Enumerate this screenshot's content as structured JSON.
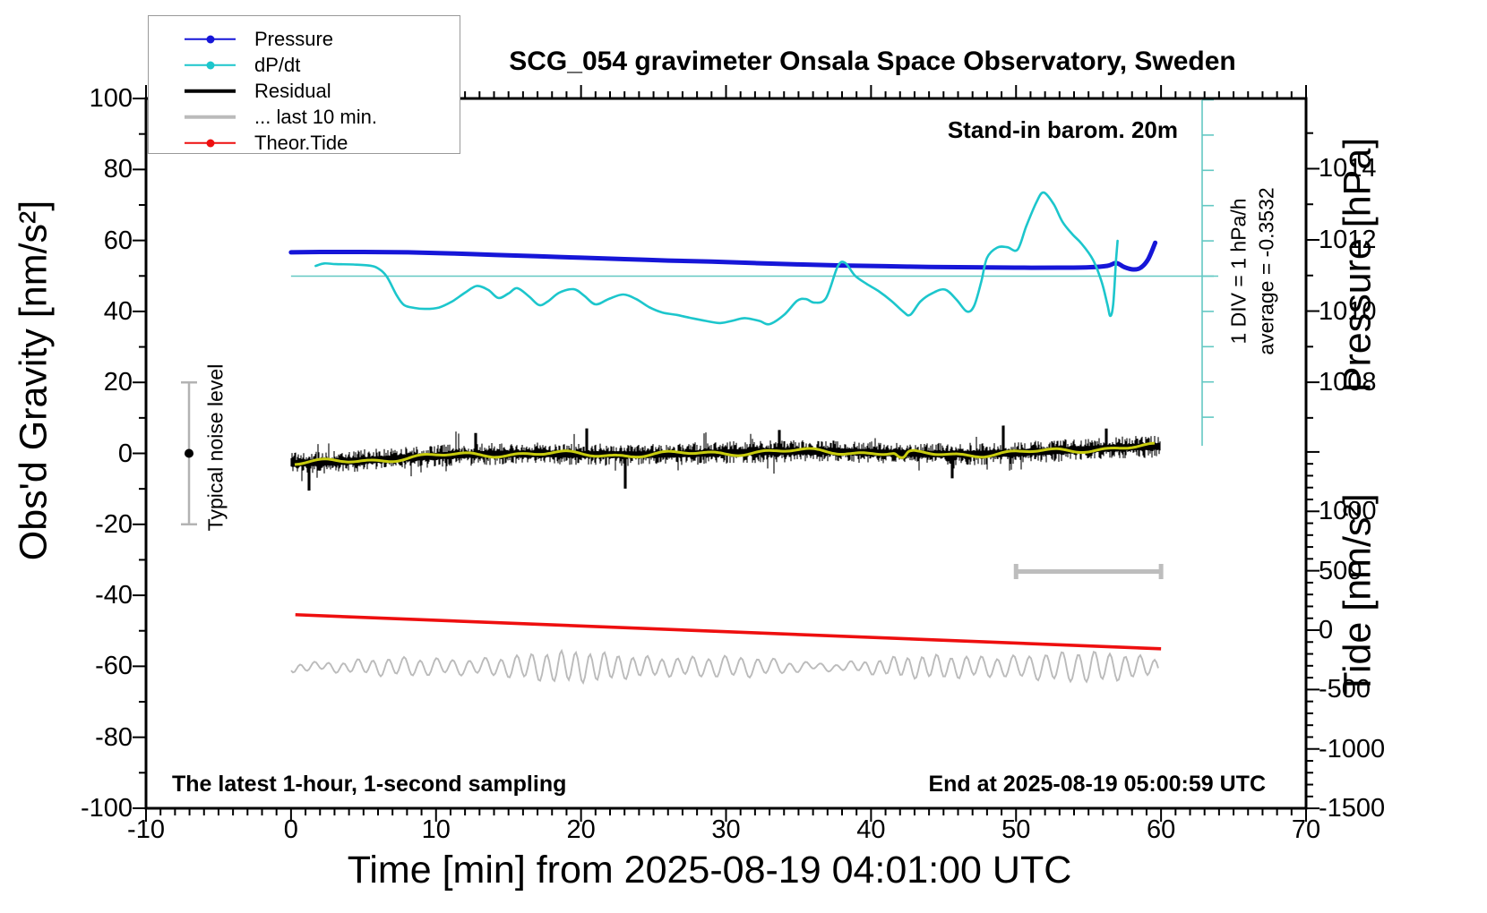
{
  "title": "SCG_054 gravimeter Onsala Space Observatory, Sweden",
  "annotations": {
    "stand_in_barometer": "Stand-in barom. 20m",
    "div_scale": "1 DIV = 1 hPa/h",
    "average": "average = -0.3532",
    "typical_noise": "Typical noise level",
    "sampling_note": "The latest 1-hour, 1-second sampling",
    "end_time": "End at 2025-08-19 05:00:59 UTC"
  },
  "axes": {
    "x": {
      "title": "Time [min] from 2025-08-19 04:01:00 UTC",
      "range": [
        -10,
        70
      ],
      "major_ticks": [
        -10,
        0,
        10,
        20,
        30,
        40,
        50,
        60,
        70
      ],
      "minor_step_min": 1
    },
    "gravity": {
      "title": "Obs'd Gravity [nm/s²]",
      "range": [
        -100,
        100
      ],
      "major_ticks": [
        100,
        80,
        60,
        40,
        20,
        0,
        -20,
        -40,
        -60,
        -80,
        -100
      ],
      "minor_step": 10
    },
    "pressure": {
      "title": "Pressure [hPa]",
      "major_ticks": [
        1014,
        1012,
        1010,
        1008
      ],
      "minor_step": 1,
      "tick_span": [
        1015,
        1007
      ]
    },
    "tide": {
      "title": "Tide [nm/s²]",
      "major_ticks": [
        1000,
        500,
        0,
        -500,
        -1000,
        -1500
      ],
      "minor_step": 100,
      "tick_span": [
        1500,
        -1500
      ]
    }
  },
  "legend": {
    "items": [
      {
        "name": "pressure",
        "label": "Pressure",
        "color": "#1616d8",
        "thick": false,
        "dot": true
      },
      {
        "name": "dpdt",
        "label": "dP/dt",
        "color": "#1cc6cc",
        "thick": false,
        "dot": true
      },
      {
        "name": "residual",
        "label": "Residual",
        "color": "#000000",
        "thick": true,
        "dot": false
      },
      {
        "name": "last-10-min",
        "label": "... last 10 min.",
        "color": "#bbbbbb",
        "thick": true,
        "dot": false
      },
      {
        "name": "theor-tide",
        "label": "Theor.Tide",
        "color": "#ee0f0f",
        "thick": false,
        "dot": true
      }
    ]
  },
  "colors": {
    "pressure": "#1616d8",
    "dpdt": "#1cc6cc",
    "dpdt_reference": "#63c8c3",
    "residual": "#000000",
    "residual_smooth": "#c8cc0e",
    "last10": "#bbbbbb",
    "tide": "#ee0f0f",
    "noise_bar": "#b3b3b3",
    "scale_bar": "#bdbdbd",
    "frame": "#000000"
  },
  "chart_data": {
    "type": "line",
    "x_unit": "minutes from 2025-08-19 04:01:00 UTC",
    "x_range": [
      -10,
      70
    ],
    "series": [
      {
        "name": "Pressure",
        "unit": "hPa",
        "axis": "pressure",
        "points": [
          [
            0,
            1011.65
          ],
          [
            2,
            1011.66
          ],
          [
            5,
            1011.66
          ],
          [
            8,
            1011.65
          ],
          [
            11,
            1011.62
          ],
          [
            14,
            1011.58
          ],
          [
            17,
            1011.54
          ],
          [
            20,
            1011.5
          ],
          [
            23,
            1011.46
          ],
          [
            26,
            1011.42
          ],
          [
            29,
            1011.39
          ],
          [
            32,
            1011.35
          ],
          [
            35,
            1011.31
          ],
          [
            38,
            1011.28
          ],
          [
            41,
            1011.26
          ],
          [
            44,
            1011.24
          ],
          [
            47,
            1011.23
          ],
          [
            50,
            1011.22
          ],
          [
            53,
            1011.22
          ],
          [
            55,
            1011.23
          ],
          [
            56.3,
            1011.27
          ],
          [
            56.9,
            1011.35
          ],
          [
            57.5,
            1011.23
          ],
          [
            58.1,
            1011.17
          ],
          [
            58.6,
            1011.22
          ],
          [
            59.1,
            1011.45
          ],
          [
            59.6,
            1011.92
          ]
        ]
      },
      {
        "name": "dP/dt",
        "unit": "hPa/h",
        "axis": "dpdt-scalebar",
        "zero_reference_drawn": true,
        "points": [
          [
            1.7,
            0.29
          ],
          [
            2.3,
            0.36
          ],
          [
            3.1,
            0.34
          ],
          [
            4.3,
            0.33
          ],
          [
            5.4,
            0.3
          ],
          [
            6.0,
            0.22
          ],
          [
            6.6,
            -0.01
          ],
          [
            7.3,
            -0.55
          ],
          [
            7.8,
            -0.82
          ],
          [
            8.5,
            -0.9
          ],
          [
            9.3,
            -0.93
          ],
          [
            10.2,
            -0.89
          ],
          [
            11.1,
            -0.72
          ],
          [
            12.0,
            -0.47
          ],
          [
            12.8,
            -0.28
          ],
          [
            13.6,
            -0.39
          ],
          [
            14.3,
            -0.62
          ],
          [
            15.0,
            -0.49
          ],
          [
            15.6,
            -0.34
          ],
          [
            16.4,
            -0.57
          ],
          [
            17.1,
            -0.82
          ],
          [
            17.7,
            -0.72
          ],
          [
            18.5,
            -0.47
          ],
          [
            19.5,
            -0.37
          ],
          [
            20.2,
            -0.55
          ],
          [
            21.0,
            -0.8
          ],
          [
            21.9,
            -0.65
          ],
          [
            22.9,
            -0.52
          ],
          [
            23.8,
            -0.65
          ],
          [
            24.7,
            -0.88
          ],
          [
            25.6,
            -1.03
          ],
          [
            26.6,
            -1.1
          ],
          [
            27.5,
            -1.18
          ],
          [
            28.6,
            -1.27
          ],
          [
            29.6,
            -1.33
          ],
          [
            30.5,
            -1.26
          ],
          [
            31.3,
            -1.19
          ],
          [
            32.3,
            -1.27
          ],
          [
            33.0,
            -1.36
          ],
          [
            34.0,
            -1.1
          ],
          [
            34.9,
            -0.7
          ],
          [
            35.5,
            -0.65
          ],
          [
            36.1,
            -0.75
          ],
          [
            36.9,
            -0.62
          ],
          [
            37.7,
            0.27
          ],
          [
            38.2,
            0.38
          ],
          [
            38.9,
            0.01
          ],
          [
            39.7,
            -0.22
          ],
          [
            40.5,
            -0.42
          ],
          [
            41.4,
            -0.7
          ],
          [
            42.2,
            -1.0
          ],
          [
            42.7,
            -1.1
          ],
          [
            43.4,
            -0.72
          ],
          [
            44.2,
            -0.49
          ],
          [
            45.1,
            -0.38
          ],
          [
            45.9,
            -0.67
          ],
          [
            46.6,
            -1.0
          ],
          [
            47.1,
            -0.85
          ],
          [
            47.6,
            -0.16
          ],
          [
            48.0,
            0.52
          ],
          [
            48.7,
            0.81
          ],
          [
            49.4,
            0.82
          ],
          [
            50.1,
            0.75
          ],
          [
            50.7,
            1.41
          ],
          [
            51.4,
            2.09
          ],
          [
            51.9,
            2.37
          ],
          [
            52.6,
            2.04
          ],
          [
            53.2,
            1.54
          ],
          [
            53.9,
            1.18
          ],
          [
            54.5,
            0.93
          ],
          [
            55.3,
            0.47
          ],
          [
            55.9,
            -0.16
          ],
          [
            56.3,
            -0.8
          ],
          [
            56.5,
            -1.13
          ],
          [
            56.7,
            -0.8
          ],
          [
            56.9,
            0.47
          ],
          [
            57.0,
            1.0
          ]
        ]
      },
      {
        "name": "Theor.Tide",
        "unit": "nm/s²",
        "axis": "tide",
        "points": [
          [
            0.3,
            130
          ],
          [
            60,
            -157
          ]
        ]
      },
      {
        "name": "Residual",
        "unit": "nm/s²",
        "axis": "gravity",
        "description": "1-second sampled noise band around 0",
        "band_center_start": -1.9,
        "band_center_end": 1.6,
        "typical_peak": 4,
        "max_spike": 10
      },
      {
        "name": "Residual smoothed",
        "unit": "nm/s²",
        "axis": "gravity",
        "description": "slowly varying mean of residual (yellow overlay)"
      },
      {
        "name": "... last 10 min.",
        "unit": "nm/s²",
        "axis": "gravity",
        "description": "fast residual trace plotted offset near -60 nm/s²",
        "center": -60,
        "amplitude": 3,
        "period_min": 1
      }
    ],
    "scale_bars": {
      "dpdt_div_hPa_per_h": 1,
      "dpdt_average_hPa_per_h": -0.3532,
      "last10_bar_minutes": [
        50,
        60
      ],
      "typical_noise_level_nm_s2": [
        -20,
        20
      ]
    },
    "legend_position": "top-left",
    "grid": false
  }
}
